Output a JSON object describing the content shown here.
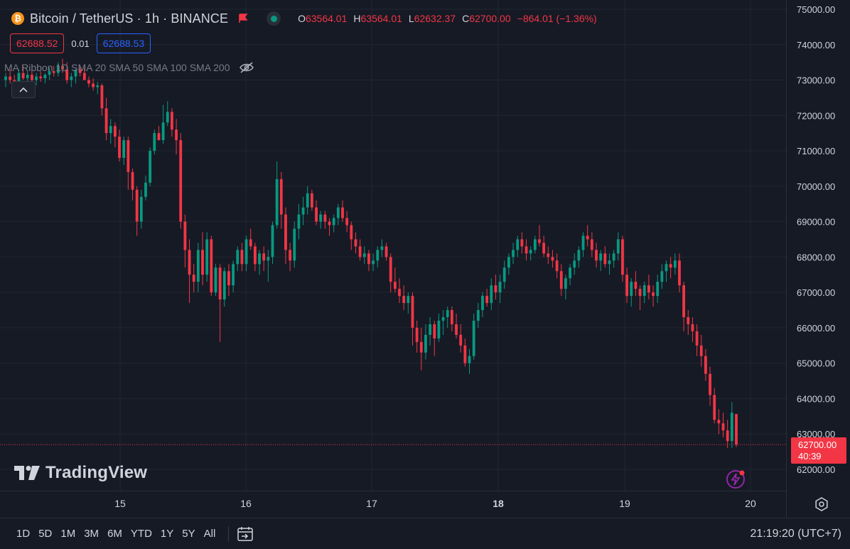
{
  "header": {
    "coin_icon_glyph": "₿",
    "symbol_title": "Bitcoin / TetherUS · 1h · BINANCE",
    "ohlc": [
      {
        "k": "O",
        "v": "63564.01"
      },
      {
        "k": "H",
        "v": "63564.01"
      },
      {
        "k": "L",
        "v": "62632.37"
      },
      {
        "k": "C",
        "v": "62700.00"
      },
      {
        "k": "",
        "v": "−864.01 (−1.36%)"
      }
    ]
  },
  "quote": {
    "bid": "62688.52",
    "spread": "0.01",
    "ask": "62688.53"
  },
  "indicator_text": "MA Ribbon 1D SMA 20 SMA 50 SMA 100 SMA 200",
  "logo_text": "TradingView",
  "price_tag": {
    "price": "62700.00",
    "countdown": "40:39"
  },
  "range_buttons": [
    "1D",
    "5D",
    "1M",
    "3M",
    "6M",
    "YTD",
    "1Y",
    "5Y",
    "All"
  ],
  "clock": "21:19:20 (UTC+7)",
  "icons": [
    "bitcoin-icon",
    "flag-icon",
    "live-status-icon",
    "eye-off-icon",
    "chevron-up-icon",
    "tradingview-logo-icon",
    "lightning-icon",
    "gear-icon",
    "calendar-goto-icon"
  ],
  "colors": {
    "background": "#161a25",
    "grid": "#232632",
    "up": "#089981",
    "down": "#f23645",
    "text": "#d1d4dc",
    "muted": "#787b86"
  },
  "chart_data": {
    "type": "candlestick",
    "title": "Bitcoin / TetherUS · 1h · BINANCE",
    "ylim": [
      62000,
      75000
    ],
    "y_ticks": [
      "75000.00",
      "74000.00",
      "73000.00",
      "72000.00",
      "71000.00",
      "70000.00",
      "69000.00",
      "68000.00",
      "67000.00",
      "66000.00",
      "65000.00",
      "64000.00",
      "63000.00",
      "62000.00"
    ],
    "x_ticks": [
      "15",
      "16",
      "17",
      "18",
      "19",
      "20"
    ],
    "last_price": 62700.0,
    "grid": true,
    "candles_ohlc": [
      [
        73000,
        73200,
        72800,
        73100
      ],
      [
        73100,
        73300,
        72900,
        73000
      ],
      [
        73000,
        73150,
        72850,
        72900
      ],
      [
        72900,
        73300,
        72800,
        73200
      ],
      [
        73200,
        73400,
        73000,
        73050
      ],
      [
        73050,
        73250,
        72900,
        73150
      ],
      [
        73150,
        73300,
        72950,
        73000
      ],
      [
        73000,
        73200,
        72850,
        73100
      ],
      [
        73100,
        73250,
        72950,
        73050
      ],
      [
        73050,
        73200,
        72900,
        73150
      ],
      [
        73150,
        73350,
        73000,
        73250
      ],
      [
        73250,
        73400,
        73100,
        73200
      ],
      [
        73200,
        73500,
        73100,
        73400
      ],
      [
        73400,
        73600,
        73200,
        73300
      ],
      [
        73300,
        73500,
        72900,
        73000
      ],
      [
        73000,
        73200,
        72800,
        73100
      ],
      [
        73100,
        73300,
        72900,
        73300
      ],
      [
        73300,
        73400,
        73100,
        73200
      ],
      [
        73200,
        73350,
        73050,
        73000
      ],
      [
        73000,
        73100,
        72800,
        72900
      ],
      [
        72900,
        73050,
        72700,
        72800
      ],
      [
        72800,
        72950,
        72600,
        72850
      ],
      [
        72850,
        72900,
        72000,
        72200
      ],
      [
        72200,
        72500,
        71300,
        71500
      ],
      [
        71500,
        71900,
        71200,
        71700
      ],
      [
        71700,
        71800,
        71100,
        71400
      ],
      [
        71400,
        71600,
        70700,
        70800
      ],
      [
        70800,
        71400,
        70600,
        71300
      ],
      [
        71300,
        71400,
        69900,
        70400
      ],
      [
        70400,
        70500,
        69600,
        69900
      ],
      [
        69900,
        70000,
        68600,
        69000
      ],
      [
        69000,
        69900,
        68800,
        69700
      ],
      [
        69700,
        70300,
        69600,
        70100
      ],
      [
        70100,
        71100,
        70000,
        71000
      ],
      [
        71000,
        71600,
        70900,
        71500
      ],
      [
        71500,
        71700,
        71300,
        71300
      ],
      [
        71300,
        72300,
        71200,
        71800
      ],
      [
        71800,
        72400,
        71700,
        72100
      ],
      [
        72100,
        72200,
        71400,
        71600
      ],
      [
        71600,
        71900,
        70900,
        71300
      ],
      [
        71300,
        71500,
        68800,
        69000
      ],
      [
        69000,
        69200,
        67700,
        68200
      ],
      [
        68200,
        68500,
        66700,
        67500
      ],
      [
        67500,
        67800,
        67000,
        67300
      ],
      [
        67300,
        68400,
        67000,
        68200
      ],
      [
        68200,
        68700,
        67200,
        67500
      ],
      [
        67500,
        68700,
        67300,
        68500
      ],
      [
        68500,
        68600,
        66900,
        67000
      ],
      [
        67000,
        67800,
        66900,
        67700
      ],
      [
        67700,
        67800,
        65600,
        66800
      ],
      [
        66800,
        67700,
        66600,
        67600
      ],
      [
        67600,
        67800,
        66900,
        67200
      ],
      [
        67200,
        67900,
        67000,
        67800
      ],
      [
        67800,
        68300,
        67600,
        68200
      ],
      [
        68200,
        68400,
        67600,
        67800
      ],
      [
        67800,
        68600,
        67600,
        68500
      ],
      [
        68500,
        68800,
        68200,
        68300
      ],
      [
        68300,
        68400,
        67600,
        67800
      ],
      [
        67800,
        68200,
        67500,
        68100
      ],
      [
        68100,
        68300,
        67600,
        67900
      ],
      [
        67900,
        68200,
        67300,
        68000
      ],
      [
        68000,
        69000,
        67800,
        68900
      ],
      [
        68900,
        70700,
        68800,
        70200
      ],
      [
        70200,
        70400,
        68800,
        69200
      ],
      [
        69200,
        69400,
        67800,
        68200
      ],
      [
        68200,
        68400,
        67600,
        67900
      ],
      [
        67900,
        69000,
        67700,
        68800
      ],
      [
        68800,
        69500,
        68500,
        69200
      ],
      [
        69200,
        69700,
        68900,
        69400
      ],
      [
        69400,
        70000,
        69200,
        69800
      ],
      [
        69800,
        69900,
        69300,
        69400
      ],
      [
        69400,
        69600,
        68900,
        69000
      ],
      [
        69000,
        69300,
        68800,
        69200
      ],
      [
        69200,
        69300,
        68800,
        69000
      ],
      [
        69000,
        69100,
        68600,
        68900
      ],
      [
        68900,
        69200,
        68700,
        69100
      ],
      [
        69100,
        69500,
        68900,
        69400
      ],
      [
        69400,
        69600,
        69000,
        69100
      ],
      [
        69100,
        69300,
        68700,
        68900
      ],
      [
        68900,
        69000,
        68200,
        68500
      ],
      [
        68500,
        68700,
        68100,
        68300
      ],
      [
        68300,
        68500,
        67900,
        68000
      ],
      [
        68000,
        68300,
        67800,
        68100
      ],
      [
        68100,
        68200,
        67600,
        67800
      ],
      [
        67800,
        68100,
        67600,
        67900
      ],
      [
        67900,
        68300,
        67700,
        68200
      ],
      [
        68200,
        68500,
        68000,
        68300
      ],
      [
        68300,
        68400,
        67900,
        68000
      ],
      [
        68000,
        68100,
        67000,
        67300
      ],
      [
        67300,
        67700,
        67000,
        67100
      ],
      [
        67100,
        67400,
        66700,
        66900
      ],
      [
        66900,
        67200,
        66500,
        66700
      ],
      [
        66700,
        67000,
        66400,
        66900
      ],
      [
        66900,
        67000,
        65500,
        66000
      ],
      [
        66000,
        66200,
        65300,
        65600
      ],
      [
        65600,
        66000,
        64800,
        65300
      ],
      [
        65300,
        66100,
        65100,
        65800
      ],
      [
        65800,
        66300,
        65500,
        66100
      ],
      [
        66100,
        66200,
        65200,
        65700
      ],
      [
        65700,
        66400,
        65600,
        66200
      ],
      [
        66200,
        66500,
        65800,
        66300
      ],
      [
        66300,
        66600,
        66000,
        66500
      ],
      [
        66500,
        66600,
        65900,
        66100
      ],
      [
        66100,
        66400,
        65700,
        65800
      ],
      [
        65800,
        66100,
        65300,
        65500
      ],
      [
        65500,
        65700,
        64900,
        65000
      ],
      [
        65000,
        65400,
        64700,
        65200
      ],
      [
        65200,
        66400,
        65100,
        66200
      ],
      [
        66200,
        66700,
        66000,
        66500
      ],
      [
        66500,
        67000,
        66300,
        66900
      ],
      [
        66900,
        67100,
        66600,
        66700
      ],
      [
        66700,
        67400,
        66500,
        67200
      ],
      [
        67200,
        67500,
        66800,
        67000
      ],
      [
        67000,
        67500,
        66700,
        67300
      ],
      [
        67300,
        67900,
        67100,
        67700
      ],
      [
        67700,
        68100,
        67500,
        68000
      ],
      [
        68000,
        68400,
        67800,
        68200
      ],
      [
        68200,
        68600,
        68000,
        68500
      ],
      [
        68500,
        68700,
        68100,
        68300
      ],
      [
        68300,
        68500,
        67900,
        68100
      ],
      [
        68100,
        68300,
        67900,
        68200
      ],
      [
        68200,
        68600,
        68100,
        68500
      ],
      [
        68500,
        68900,
        68300,
        68400
      ],
      [
        68400,
        68600,
        68000,
        68100
      ],
      [
        68100,
        68300,
        67800,
        68000
      ],
      [
        68000,
        68200,
        67700,
        67900
      ],
      [
        67900,
        68100,
        67400,
        67600
      ],
      [
        67600,
        67800,
        66900,
        67100
      ],
      [
        67100,
        67500,
        66800,
        67400
      ],
      [
        67400,
        67800,
        67200,
        67700
      ],
      [
        67700,
        68100,
        67500,
        67900
      ],
      [
        67900,
        68300,
        67700,
        68200
      ],
      [
        68200,
        68700,
        68000,
        68600
      ],
      [
        68600,
        68900,
        68300,
        68500
      ],
      [
        68500,
        68700,
        68000,
        68200
      ],
      [
        68200,
        68400,
        67700,
        67900
      ],
      [
        67900,
        68200,
        67600,
        68100
      ],
      [
        68100,
        68300,
        67700,
        67800
      ],
      [
        67800,
        68100,
        67500,
        67900
      ],
      [
        67900,
        68200,
        67700,
        68100
      ],
      [
        68100,
        68700,
        67900,
        68500
      ],
      [
        68500,
        68600,
        67300,
        67500
      ],
      [
        67500,
        67700,
        66700,
        66900
      ],
      [
        66900,
        67400,
        66600,
        67300
      ],
      [
        67300,
        67600,
        66900,
        67100
      ],
      [
        67100,
        67200,
        66500,
        66900
      ],
      [
        66900,
        67300,
        66700,
        67200
      ],
      [
        67200,
        67500,
        66800,
        67000
      ],
      [
        67000,
        67200,
        66600,
        66900
      ],
      [
        66900,
        67500,
        66700,
        67300
      ],
      [
        67300,
        67800,
        67100,
        67600
      ],
      [
        67600,
        67900,
        67300,
        67800
      ],
      [
        67800,
        68000,
        67400,
        67700
      ],
      [
        67700,
        68100,
        67500,
        67900
      ],
      [
        67900,
        68100,
        67000,
        67200
      ],
      [
        67200,
        67300,
        65900,
        66300
      ],
      [
        66300,
        66500,
        65800,
        66100
      ],
      [
        66100,
        66300,
        65600,
        65900
      ],
      [
        65900,
        66100,
        65200,
        65500
      ],
      [
        65500,
        65800,
        64900,
        65200
      ],
      [
        65200,
        65400,
        64500,
        64700
      ],
      [
        64700,
        64900,
        63800,
        64100
      ],
      [
        64100,
        64300,
        63300,
        63400
      ],
      [
        63400,
        63700,
        63000,
        63300
      ],
      [
        63300,
        63600,
        62900,
        63100
      ],
      [
        63100,
        63400,
        62600,
        62800
      ],
      [
        62800,
        63900,
        62600,
        63600
      ],
      [
        63564.01,
        63564.01,
        62632.37,
        62700
      ]
    ]
  }
}
